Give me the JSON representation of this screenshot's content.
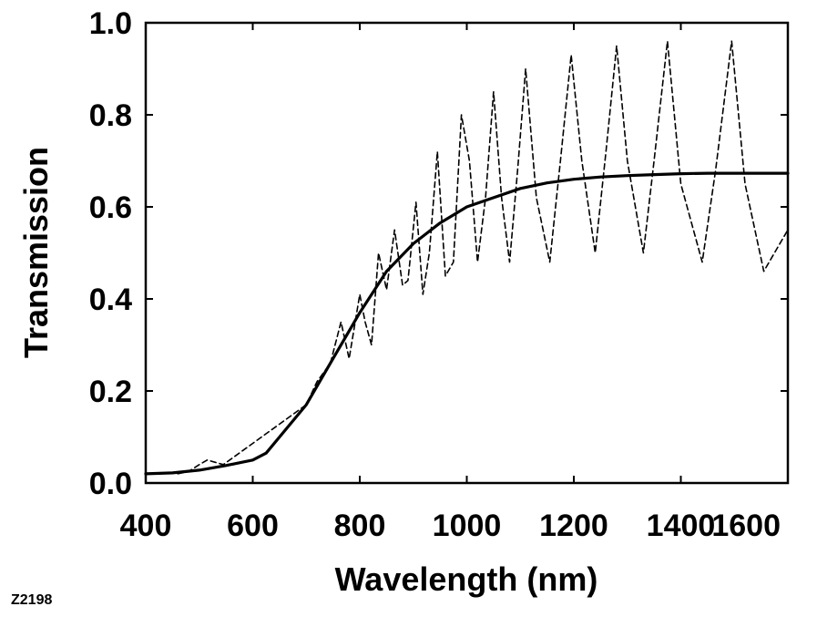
{
  "figure_id": "Z2198",
  "chart_data": {
    "type": "line",
    "title": "",
    "xlabel": "Wavelength (nm)",
    "ylabel": "Transmission",
    "xlim": [
      400,
      1600
    ],
    "ylim": [
      0.0,
      1.0
    ],
    "grid": false,
    "x_ticks": [
      400,
      600,
      800,
      1000,
      1200,
      1400,
      1600
    ],
    "x_tick_labels": [
      "400",
      "600",
      "800",
      "1000",
      "1200",
      "1400",
      "1600"
    ],
    "y_ticks": [
      0.0,
      0.2,
      0.4,
      0.6,
      0.8,
      1.0
    ],
    "y_tick_labels": [
      "0.0",
      "0.2",
      "0.4",
      "0.6",
      "0.8",
      "1.0"
    ],
    "series": [
      {
        "name": "solid",
        "style": "solid",
        "color": "#000000",
        "x": [
          400,
          450,
          500,
          550,
          600,
          625,
          650,
          700,
          750,
          800,
          850,
          900,
          950,
          1000,
          1050,
          1100,
          1150,
          1200,
          1250,
          1300,
          1350,
          1400,
          1450,
          1500,
          1550,
          1600
        ],
        "y": [
          0.02,
          0.022,
          0.028,
          0.038,
          0.05,
          0.065,
          0.1,
          0.17,
          0.27,
          0.37,
          0.46,
          0.52,
          0.565,
          0.6,
          0.62,
          0.64,
          0.652,
          0.66,
          0.665,
          0.668,
          0.67,
          0.672,
          0.673,
          0.673,
          0.673,
          0.673
        ]
      },
      {
        "name": "dashed",
        "style": "dashed",
        "color": "#000000",
        "x": [
          460,
          480,
          500,
          515,
          530,
          545,
          700,
          720,
          745,
          765,
          780,
          800,
          810,
          822,
          835,
          850,
          865,
          880,
          890,
          905,
          918,
          930,
          945,
          960,
          975,
          990,
          1005,
          1020,
          1035,
          1050,
          1065,
          1080,
          1095,
          1110,
          1130,
          1155,
          1175,
          1195,
          1215,
          1240,
          1260,
          1280,
          1300,
          1330,
          1350,
          1375,
          1400,
          1440,
          1465,
          1495,
          1520,
          1555,
          1575,
          1600
        ],
        "y": [
          0.02,
          0.025,
          0.04,
          0.05,
          0.045,
          0.04,
          0.17,
          0.22,
          0.26,
          0.35,
          0.27,
          0.41,
          0.35,
          0.3,
          0.5,
          0.42,
          0.55,
          0.43,
          0.44,
          0.61,
          0.41,
          0.5,
          0.72,
          0.45,
          0.48,
          0.8,
          0.7,
          0.48,
          0.62,
          0.85,
          0.62,
          0.48,
          0.68,
          0.9,
          0.62,
          0.48,
          0.7,
          0.93,
          0.7,
          0.5,
          0.72,
          0.95,
          0.7,
          0.5,
          0.7,
          0.96,
          0.65,
          0.48,
          0.68,
          0.96,
          0.65,
          0.46,
          0.5,
          0.55
        ]
      }
    ]
  }
}
